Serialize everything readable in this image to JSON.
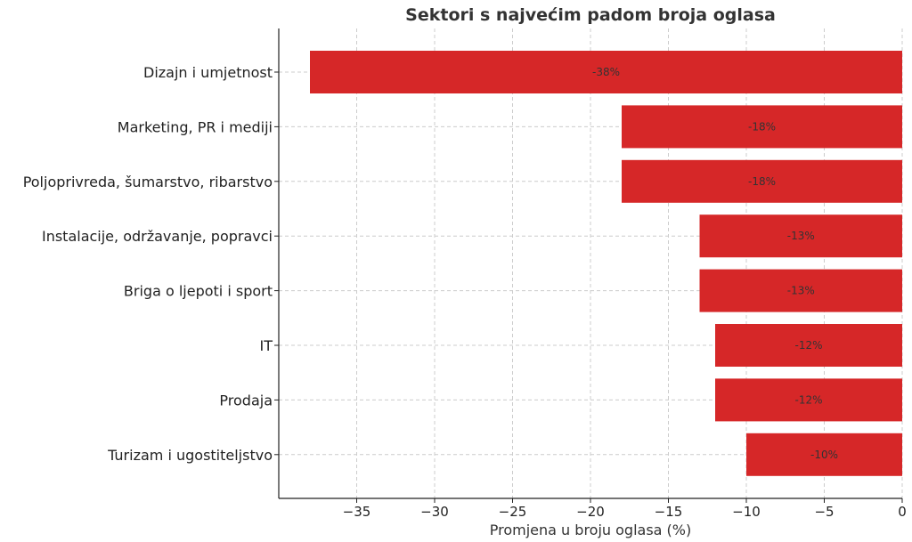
{
  "chart_data": {
    "type": "bar",
    "orientation": "horizontal",
    "title": "Sektori s najvećim padom broja oglasa",
    "xlabel": "Promjena u broju oglasa (%)",
    "ylabel": "",
    "categories": [
      "Dizajn i umjetnost",
      "Marketing, PR i mediji",
      "Poljoprivreda, šumarstvo, ribarstvo",
      "Instalacije, održavanje, popravci",
      "Briga o ljepoti i sport",
      "IT",
      "Prodaja",
      "Turizam i ugostiteljstvo"
    ],
    "values": [
      -38,
      -18,
      -18,
      -13,
      -13,
      -12,
      -12,
      -10
    ],
    "data_labels": [
      "-38%",
      "-18%",
      "-18%",
      "-13%",
      "-13%",
      "-12%",
      "-12%",
      "-10%"
    ],
    "xlim": [
      -40,
      0
    ],
    "xticks": [
      -35,
      -30,
      -25,
      -20,
      -15,
      -10,
      -5,
      0
    ],
    "xtick_labels": [
      "−35",
      "−30",
      "−25",
      "−20",
      "−15",
      "−10",
      "−5",
      "0"
    ],
    "grid": true,
    "bar_color": "#d62728"
  }
}
